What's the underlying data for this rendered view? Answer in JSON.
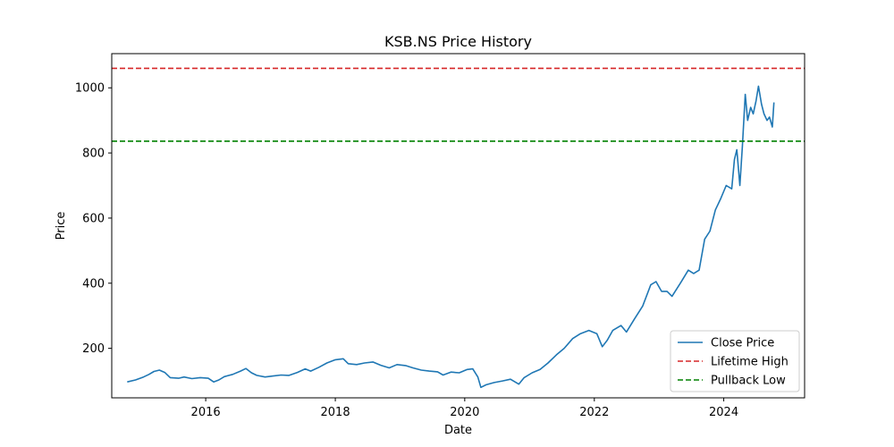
{
  "chart_data": {
    "type": "line",
    "title": "KSB.NS Price History",
    "xlabel": "Date",
    "ylabel": "Price",
    "xlim": [
      "2014-07-20",
      "2025-04-01"
    ],
    "ylim": [
      48,
      1105
    ],
    "x_ticks": [
      "2016",
      "2018",
      "2020",
      "2022",
      "2024"
    ],
    "y_ticks": [
      200,
      400,
      600,
      800,
      1000
    ],
    "grid": false,
    "legend_position": "lower right",
    "series": [
      {
        "name": "Close Price",
        "color": "#1f77b4",
        "style": "solid",
        "points": [
          [
            "2014-10-15",
            97
          ],
          [
            "2014-12-01",
            103
          ],
          [
            "2015-01-15",
            112
          ],
          [
            "2015-02-15",
            120
          ],
          [
            "2015-03-15",
            129
          ],
          [
            "2015-04-15",
            133
          ],
          [
            "2015-05-15",
            126
          ],
          [
            "2015-06-15",
            110
          ],
          [
            "2015-08-01",
            108
          ],
          [
            "2015-09-01",
            112
          ],
          [
            "2015-10-15",
            107
          ],
          [
            "2015-12-01",
            110
          ],
          [
            "2016-01-15",
            108
          ],
          [
            "2016-02-15",
            97
          ],
          [
            "2016-03-15",
            103
          ],
          [
            "2016-04-15",
            113
          ],
          [
            "2016-06-01",
            120
          ],
          [
            "2016-07-15",
            130
          ],
          [
            "2016-08-15",
            138
          ],
          [
            "2016-09-15",
            125
          ],
          [
            "2016-10-15",
            117
          ],
          [
            "2016-12-01",
            112
          ],
          [
            "2017-01-15",
            115
          ],
          [
            "2017-03-01",
            118
          ],
          [
            "2017-04-15",
            117
          ],
          [
            "2017-06-01",
            126
          ],
          [
            "2017-07-15",
            137
          ],
          [
            "2017-08-15",
            130
          ],
          [
            "2017-10-01",
            142
          ],
          [
            "2017-11-15",
            155
          ],
          [
            "2018-01-01",
            165
          ],
          [
            "2018-02-15",
            168
          ],
          [
            "2018-03-15",
            153
          ],
          [
            "2018-05-01",
            150
          ],
          [
            "2018-06-15",
            155
          ],
          [
            "2018-08-01",
            158
          ],
          [
            "2018-09-15",
            148
          ],
          [
            "2018-11-01",
            140
          ],
          [
            "2018-12-15",
            150
          ],
          [
            "2019-02-01",
            147
          ],
          [
            "2019-03-15",
            140
          ],
          [
            "2019-05-01",
            133
          ],
          [
            "2019-06-15",
            130
          ],
          [
            "2019-08-01",
            128
          ],
          [
            "2019-09-01",
            118
          ],
          [
            "2019-10-15",
            127
          ],
          [
            "2019-12-01",
            125
          ],
          [
            "2020-01-15",
            135
          ],
          [
            "2020-02-15",
            137
          ],
          [
            "2020-03-15",
            112
          ],
          [
            "2020-04-01",
            80
          ],
          [
            "2020-05-01",
            88
          ],
          [
            "2020-06-15",
            95
          ],
          [
            "2020-08-01",
            100
          ],
          [
            "2020-09-15",
            105
          ],
          [
            "2020-11-01",
            90
          ],
          [
            "2020-12-01",
            110
          ],
          [
            "2021-01-15",
            125
          ],
          [
            "2021-03-01",
            135
          ],
          [
            "2021-04-15",
            155
          ],
          [
            "2021-06-01",
            180
          ],
          [
            "2021-07-15",
            200
          ],
          [
            "2021-09-01",
            230
          ],
          [
            "2021-10-15",
            245
          ],
          [
            "2021-12-01",
            255
          ],
          [
            "2022-01-15",
            245
          ],
          [
            "2022-02-15",
            205
          ],
          [
            "2022-03-15",
            225
          ],
          [
            "2022-04-15",
            255
          ],
          [
            "2022-06-01",
            270
          ],
          [
            "2022-07-01",
            250
          ],
          [
            "2022-08-15",
            290
          ],
          [
            "2022-10-01",
            330
          ],
          [
            "2022-11-15",
            395
          ],
          [
            "2022-12-15",
            405
          ],
          [
            "2023-01-15",
            375
          ],
          [
            "2023-02-15",
            375
          ],
          [
            "2023-03-15",
            360
          ],
          [
            "2023-05-01",
            400
          ],
          [
            "2023-06-15",
            440
          ],
          [
            "2023-07-15",
            430
          ],
          [
            "2023-08-15",
            440
          ],
          [
            "2023-09-15",
            535
          ],
          [
            "2023-10-15",
            560
          ],
          [
            "2023-11-15",
            625
          ],
          [
            "2023-12-15",
            660
          ],
          [
            "2024-01-15",
            700
          ],
          [
            "2024-02-15",
            690
          ],
          [
            "2024-03-01",
            780
          ],
          [
            "2024-03-15",
            810
          ],
          [
            "2024-04-01",
            700
          ],
          [
            "2024-04-15",
            820
          ],
          [
            "2024-05-01",
            980
          ],
          [
            "2024-05-15",
            900
          ],
          [
            "2024-06-01",
            940
          ],
          [
            "2024-06-15",
            920
          ],
          [
            "2024-07-01",
            960
          ],
          [
            "2024-07-15",
            1005
          ],
          [
            "2024-08-01",
            950
          ],
          [
            "2024-08-15",
            920
          ],
          [
            "2024-09-01",
            900
          ],
          [
            "2024-09-15",
            910
          ],
          [
            "2024-10-01",
            880
          ],
          [
            "2024-10-10",
            955
          ]
        ]
      },
      {
        "name": "Lifetime High",
        "color": "#d62728",
        "style": "dashed",
        "y": 1060
      },
      {
        "name": "Pullback Low",
        "color": "#008000",
        "style": "dashed",
        "y": 836
      }
    ]
  }
}
